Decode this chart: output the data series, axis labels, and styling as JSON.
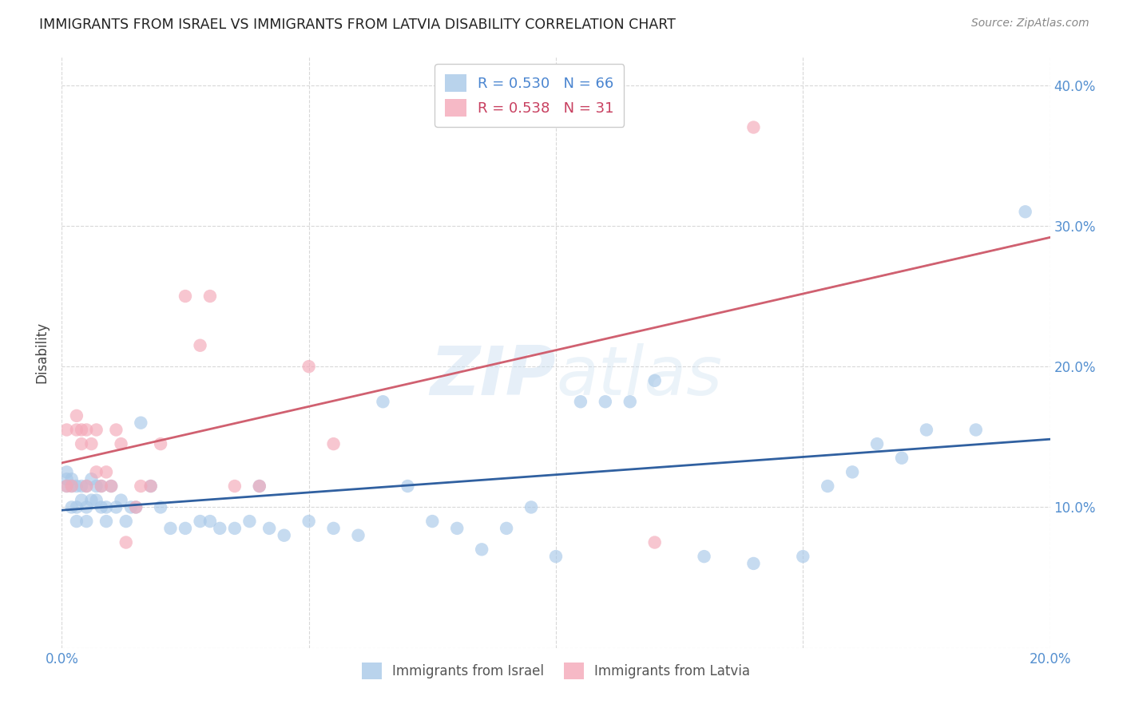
{
  "title": "IMMIGRANTS FROM ISRAEL VS IMMIGRANTS FROM LATVIA DISABILITY CORRELATION CHART",
  "source": "Source: ZipAtlas.com",
  "ylabel": "Disability",
  "watermark": "ZIPatlas",
  "israel_R": 0.53,
  "israel_N": 66,
  "latvia_R": 0.538,
  "latvia_N": 31,
  "xlim": [
    0.0,
    0.2
  ],
  "ylim": [
    0.0,
    0.42
  ],
  "xticks": [
    0.0,
    0.05,
    0.1,
    0.15,
    0.2
  ],
  "yticks": [
    0.0,
    0.1,
    0.2,
    0.3,
    0.4
  ],
  "xtick_labels": [
    "0.0%",
    "",
    "",
    "",
    "20.0%"
  ],
  "ytick_labels_right": [
    "",
    "10.0%",
    "20.0%",
    "30.0%",
    "40.0%"
  ],
  "israel_color": "#a8c8e8",
  "latvia_color": "#f4a8b8",
  "israel_line_color": "#3060a0",
  "latvia_line_color": "#d06070",
  "trend_line_color": "#cccccc",
  "background_color": "#ffffff",
  "grid_color": "#d8d8d8",
  "israel_x": [
    0.001,
    0.001,
    0.001,
    0.002,
    0.002,
    0.002,
    0.003,
    0.003,
    0.003,
    0.004,
    0.004,
    0.005,
    0.005,
    0.005,
    0.006,
    0.006,
    0.007,
    0.007,
    0.008,
    0.008,
    0.009,
    0.009,
    0.01,
    0.011,
    0.012,
    0.013,
    0.014,
    0.015,
    0.016,
    0.018,
    0.02,
    0.022,
    0.025,
    0.028,
    0.03,
    0.032,
    0.035,
    0.038,
    0.04,
    0.042,
    0.045,
    0.05,
    0.055,
    0.06,
    0.065,
    0.07,
    0.075,
    0.08,
    0.085,
    0.09,
    0.095,
    0.1,
    0.105,
    0.11,
    0.115,
    0.12,
    0.13,
    0.14,
    0.15,
    0.155,
    0.16,
    0.165,
    0.17,
    0.175,
    0.185,
    0.195
  ],
  "israel_y": [
    0.115,
    0.12,
    0.125,
    0.1,
    0.115,
    0.12,
    0.1,
    0.115,
    0.09,
    0.115,
    0.105,
    0.115,
    0.1,
    0.09,
    0.12,
    0.105,
    0.115,
    0.105,
    0.1,
    0.115,
    0.09,
    0.1,
    0.115,
    0.1,
    0.105,
    0.09,
    0.1,
    0.1,
    0.16,
    0.115,
    0.1,
    0.085,
    0.085,
    0.09,
    0.09,
    0.085,
    0.085,
    0.09,
    0.115,
    0.085,
    0.08,
    0.09,
    0.085,
    0.08,
    0.175,
    0.115,
    0.09,
    0.085,
    0.07,
    0.085,
    0.1,
    0.065,
    0.175,
    0.175,
    0.175,
    0.19,
    0.065,
    0.06,
    0.065,
    0.115,
    0.125,
    0.145,
    0.135,
    0.155,
    0.155,
    0.31
  ],
  "latvia_x": [
    0.001,
    0.001,
    0.002,
    0.003,
    0.003,
    0.004,
    0.004,
    0.005,
    0.005,
    0.006,
    0.007,
    0.007,
    0.008,
    0.009,
    0.01,
    0.011,
    0.012,
    0.013,
    0.015,
    0.016,
    0.018,
    0.02,
    0.025,
    0.028,
    0.03,
    0.035,
    0.04,
    0.05,
    0.055,
    0.12,
    0.14
  ],
  "latvia_y": [
    0.115,
    0.155,
    0.115,
    0.155,
    0.165,
    0.145,
    0.155,
    0.155,
    0.115,
    0.145,
    0.125,
    0.155,
    0.115,
    0.125,
    0.115,
    0.155,
    0.145,
    0.075,
    0.1,
    0.115,
    0.115,
    0.145,
    0.25,
    0.215,
    0.25,
    0.115,
    0.115,
    0.2,
    0.145,
    0.075,
    0.37
  ]
}
